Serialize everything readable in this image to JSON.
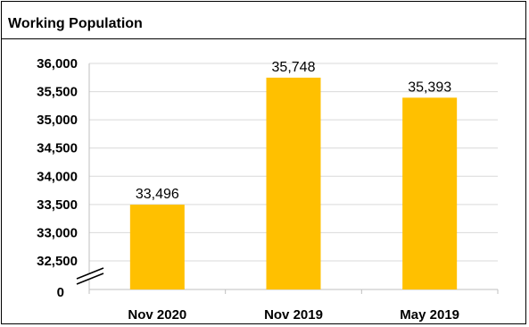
{
  "chart_data": {
    "type": "bar",
    "title": "Working Population",
    "xlabel": "",
    "ylabel": "",
    "categories": [
      "Nov 2020",
      "Nov 2019",
      "May 2019"
    ],
    "values": [
      33496,
      35748,
      35393
    ],
    "data_labels": [
      "33,496",
      "35,748",
      "35,393"
    ],
    "y_ticks": [
      32500,
      33000,
      33500,
      34000,
      34500,
      35000,
      35500,
      36000
    ],
    "y_tick_labels": [
      "32,500",
      "33,000",
      "33,500",
      "34,000",
      "34,500",
      "35,000",
      "35,500",
      "36,000"
    ],
    "y_zero_label": "0",
    "ylim": [
      32500,
      36000
    ],
    "axis_break": true,
    "grid": true,
    "legend": "none",
    "bar_color": "#FFC000",
    "grid_color": "#D9D9D9"
  }
}
